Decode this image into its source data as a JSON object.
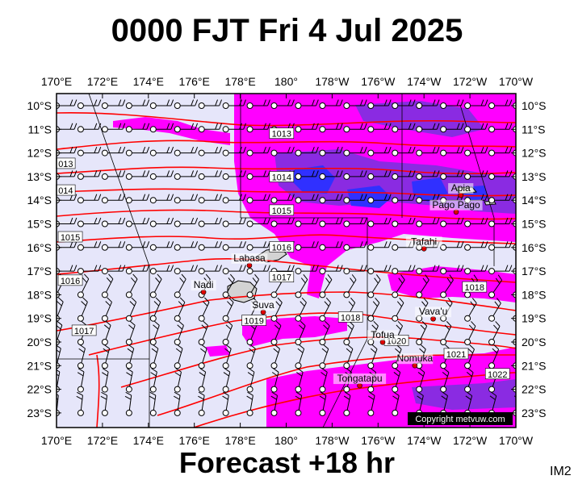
{
  "header": {
    "title": "0000 FJT Fri 4 Jul 2025"
  },
  "footer": {
    "forecast": "Forecast +18 hr",
    "image_code": "IM2",
    "copyright": "Copyright metvuw.com"
  },
  "axes": {
    "lon_labels": [
      "170°E",
      "172°E",
      "174°E",
      "176°E",
      "178°E",
      "180°",
      "178°W",
      "176°W",
      "174°W",
      "172°W",
      "170°W"
    ],
    "lat_labels": [
      "10°S",
      "11°S",
      "12°S",
      "13°S",
      "14°S",
      "15°S",
      "16°S",
      "17°S",
      "18°S",
      "19°S",
      "20°S",
      "21°S",
      "22°S",
      "23°S"
    ]
  },
  "isobars": [
    {
      "label": "1013",
      "lon": 0.49,
      "lat": 0.12
    },
    {
      "label": "013",
      "lon": 0.02,
      "lat": 0.21
    },
    {
      "label": "1014",
      "lon": 0.49,
      "lat": 0.25
    },
    {
      "label": "014",
      "lon": 0.02,
      "lat": 0.29
    },
    {
      "label": "1015",
      "lon": 0.49,
      "lat": 0.35
    },
    {
      "label": "1015",
      "lon": 0.03,
      "lat": 0.43
    },
    {
      "label": "1016",
      "lon": 0.49,
      "lat": 0.46
    },
    {
      "label": "1016",
      "lon": 0.03,
      "lat": 0.56
    },
    {
      "label": "1017",
      "lon": 0.49,
      "lat": 0.55
    },
    {
      "label": "1018",
      "lon": 0.91,
      "lat": 0.58
    },
    {
      "label": "1017",
      "lon": 0.06,
      "lat": 0.71
    },
    {
      "label": "1018",
      "lon": 0.64,
      "lat": 0.67
    },
    {
      "label": "1019",
      "lon": 0.43,
      "lat": 0.68
    },
    {
      "label": "1020",
      "lon": 0.74,
      "lat": 0.74
    },
    {
      "label": "1021",
      "lon": 0.87,
      "lat": 0.78
    },
    {
      "label": "1022",
      "lon": 0.96,
      "lat": 0.84
    }
  ],
  "places": [
    {
      "name": "Apia",
      "lon": 0.88,
      "lat": 0.29
    },
    {
      "name": "Pago Pago",
      "lon": 0.87,
      "lat": 0.34
    },
    {
      "name": "Tafahi",
      "lon": 0.8,
      "lat": 0.45
    },
    {
      "name": "Labasa",
      "lon": 0.42,
      "lat": 0.5
    },
    {
      "name": "Nadi",
      "lon": 0.32,
      "lat": 0.58
    },
    {
      "name": "Suva",
      "lon": 0.45,
      "lat": 0.64
    },
    {
      "name": "Vava'u",
      "lon": 0.82,
      "lat": 0.66
    },
    {
      "name": "Tofua",
      "lon": 0.71,
      "lat": 0.73
    },
    {
      "name": "Nomuka",
      "lon": 0.78,
      "lat": 0.8
    },
    {
      "name": "Tongatapu",
      "lon": 0.66,
      "lat": 0.86
    }
  ],
  "colors": {
    "land": "#d3d3d3",
    "sea": "#e6e6fa",
    "rain_light": "#ff00ff",
    "rain_medium": "#8a2be2",
    "rain_heavy": "#3030ff",
    "isobar": "#ff0000"
  }
}
